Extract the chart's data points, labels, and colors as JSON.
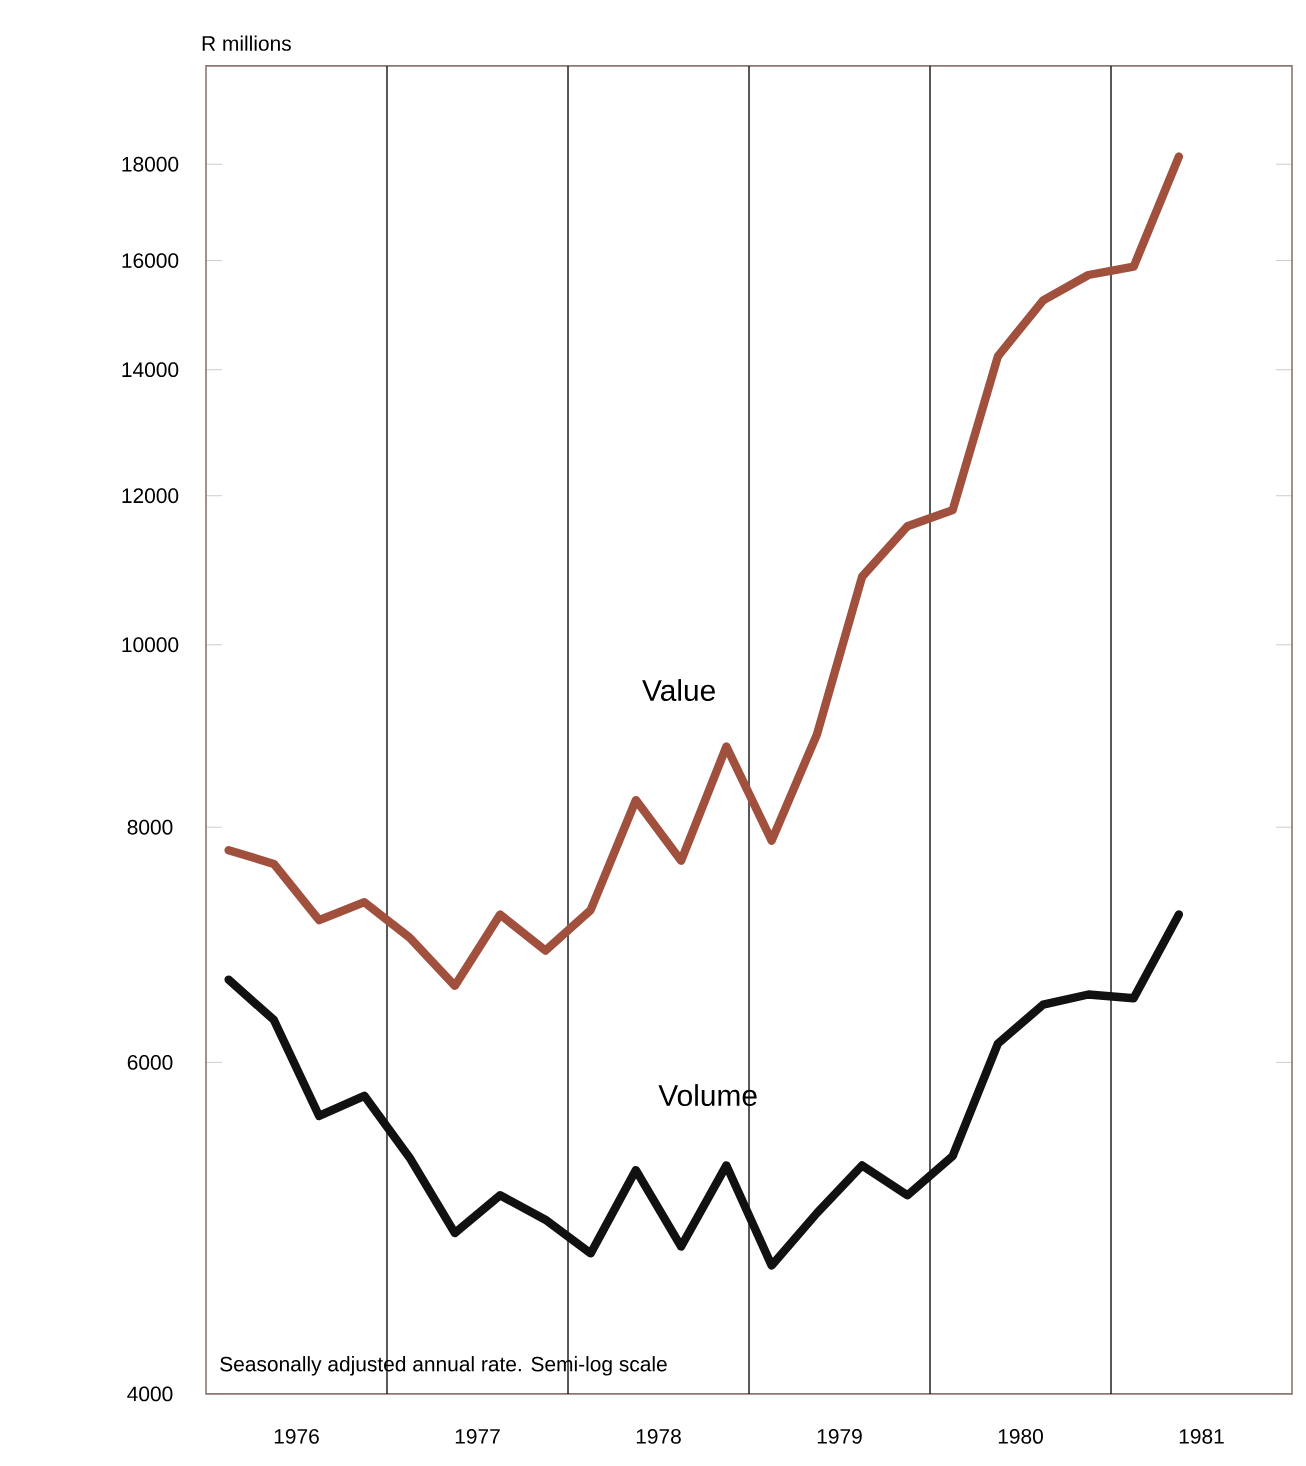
{
  "chart_data": {
    "type": "line",
    "ylabel": "R millions",
    "annotations": [
      "Seasonally adjusted annual rate. Semi-log scale"
    ],
    "x": [
      1976.125,
      1976.375,
      1976.625,
      1976.875,
      1977.125,
      1977.375,
      1977.625,
      1977.875,
      1978.125,
      1978.375,
      1978.625,
      1978.875,
      1979.125,
      1979.375,
      1979.625,
      1979.875,
      1980.125,
      1980.375,
      1980.625,
      1980.875,
      1981.125,
      1981.375
    ],
    "series": [
      {
        "name": "Value",
        "color": "#a0503c",
        "values": [
          7780,
          7650,
          7140,
          7300,
          6990,
          6590,
          7190,
          6880,
          7230,
          8270,
          7680,
          8830,
          7870,
          8960,
          10870,
          11560,
          11790,
          14230,
          15240,
          15720,
          15880,
          18170
        ]
      },
      {
        "name": "Volume",
        "color": "#111111",
        "values": [
          6640,
          6320,
          5620,
          5760,
          5340,
          4870,
          5100,
          4950,
          4750,
          5260,
          4790,
          5290,
          4680,
          4990,
          5290,
          5100,
          5350,
          6140,
          6440,
          6520,
          6490,
          7190
        ]
      }
    ],
    "xlim": [
      1976,
      1982
    ],
    "ylim": [
      4000,
      20300
    ],
    "xticks": [
      {
        "value": 1976.5,
        "label": "1976"
      },
      {
        "value": 1977.5,
        "label": "1977"
      },
      {
        "value": 1978.5,
        "label": "1978"
      },
      {
        "value": 1979.5,
        "label": "1979"
      },
      {
        "value": 1980.5,
        "label": "1980"
      },
      {
        "value": 1981.5,
        "label": "1981"
      }
    ],
    "yticks": [
      4000,
      6000,
      8000,
      10000,
      12000,
      14000,
      16000,
      18000
    ],
    "log": "y",
    "marker": "none",
    "legend": false,
    "ref_lines": [
      {
        "axis": "x",
        "value": 1977,
        "color": "#111111"
      },
      {
        "axis": "x",
        "value": 1978,
        "color": "#111111"
      },
      {
        "axis": "x",
        "value": 1979,
        "color": "#111111"
      },
      {
        "axis": "x",
        "value": 1980,
        "color": "#111111"
      },
      {
        "axis": "x",
        "value": 1981,
        "color": "#111111"
      }
    ]
  }
}
